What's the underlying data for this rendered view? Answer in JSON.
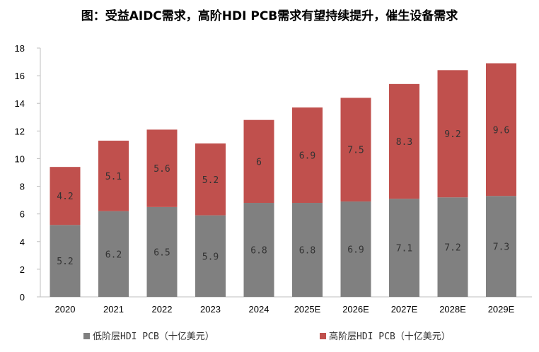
{
  "chart_data": {
    "type": "bar",
    "stacked": true,
    "title": "图：受益AIDC需求，高阶HDI PCB需求有望持续提升，催生设备需求",
    "categories": [
      "2020",
      "2021",
      "2022",
      "2023",
      "2024",
      "2025E",
      "2026E",
      "2027E",
      "2028E",
      "2029E"
    ],
    "series": [
      {
        "name": "低阶层HDI PCB（十亿美元）",
        "color": "#808080",
        "values": [
          5.2,
          6.2,
          6.5,
          5.9,
          6.8,
          6.8,
          6.9,
          7.1,
          7.2,
          7.3
        ],
        "labels": [
          "5.2",
          "6.2",
          "6.5",
          "5.9",
          "6.8",
          "6.8",
          "6.9",
          "7.1",
          "7.2",
          "7.3"
        ]
      },
      {
        "name": "高阶层HDI PCB（十亿美元）",
        "color": "#C0504D",
        "values": [
          4.2,
          5.1,
          5.6,
          5.2,
          6,
          6.9,
          7.5,
          8.3,
          9.2,
          9.6
        ],
        "labels": [
          "4.2",
          "5.1",
          "5.6",
          "5.2",
          "6",
          "6.9",
          "7.5",
          "8.3",
          "9.2",
          "9.6"
        ]
      }
    ],
    "ylim": [
      0,
      18
    ],
    "yticks": [
      "0",
      "2",
      "4",
      "6",
      "8",
      "10",
      "12",
      "14",
      "16",
      "18"
    ],
    "grid": false,
    "legend_position": "bottom"
  }
}
